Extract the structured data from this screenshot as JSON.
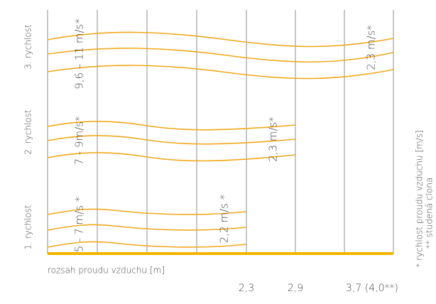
{
  "rows": [
    {
      "label": "3. rychlost",
      "start_speed": "9,6 – 11 m/s*",
      "end_speed": "2,3 m/s*"
    },
    {
      "label": "2. rychlost",
      "start_speed": "7 - 9m/s*",
      "end_speed": "2,3 m/s*"
    },
    {
      "label": "1. rychlost",
      "start_speed": "5 - 7 m/s *",
      "end_speed": "2,2 m/s *"
    }
  ],
  "notes": [
    "* rychlost proudu vzduchu [m/s]",
    "** studená clona"
  ],
  "axis": {
    "title": "rozsah proudu vzduchu [m]",
    "labels": [
      "2,3",
      "2,9",
      "3,7 (4,0**)"
    ]
  }
}
